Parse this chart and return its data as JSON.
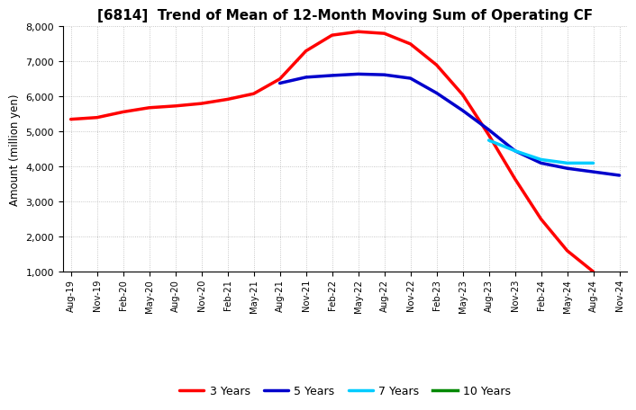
{
  "title": "[6814]  Trend of Mean of 12-Month Moving Sum of Operating CF",
  "ylabel": "Amount (million yen)",
  "ylim": [
    1000,
    8000
  ],
  "yticks": [
    1000,
    2000,
    3000,
    4000,
    5000,
    6000,
    7000,
    8000
  ],
  "background_color": "#ffffff",
  "grid_color": "#999999",
  "legend_labels": [
    "3 Years",
    "5 Years",
    "7 Years",
    "10 Years"
  ],
  "legend_colors": [
    "#ff0000",
    "#0000cc",
    "#00ccff",
    "#008800"
  ],
  "x_labels": [
    "Aug-19",
    "Nov-19",
    "Feb-20",
    "May-20",
    "Aug-20",
    "Nov-20",
    "Feb-21",
    "May-21",
    "Aug-21",
    "Nov-21",
    "Feb-22",
    "May-22",
    "Aug-22",
    "Nov-22",
    "Feb-23",
    "May-23",
    "Aug-23",
    "Nov-23",
    "Feb-24",
    "May-24",
    "Aug-24",
    "Nov-24"
  ],
  "series_3y": [
    5350,
    5400,
    5560,
    5680,
    5730,
    5800,
    5920,
    6080,
    6500,
    7300,
    7750,
    7850,
    7800,
    7500,
    6900,
    6050,
    4900,
    3650,
    2500,
    1600,
    1000,
    null
  ],
  "series_5y": [
    null,
    null,
    null,
    null,
    null,
    null,
    null,
    null,
    6380,
    6550,
    6600,
    6640,
    6620,
    6520,
    6100,
    5600,
    5050,
    4450,
    4100,
    3950,
    3850,
    3750
  ],
  "series_7y": [
    null,
    null,
    null,
    null,
    null,
    null,
    null,
    null,
    null,
    null,
    null,
    null,
    null,
    null,
    null,
    null,
    4750,
    4450,
    4200,
    4100,
    4100,
    null
  ],
  "series_10y": []
}
